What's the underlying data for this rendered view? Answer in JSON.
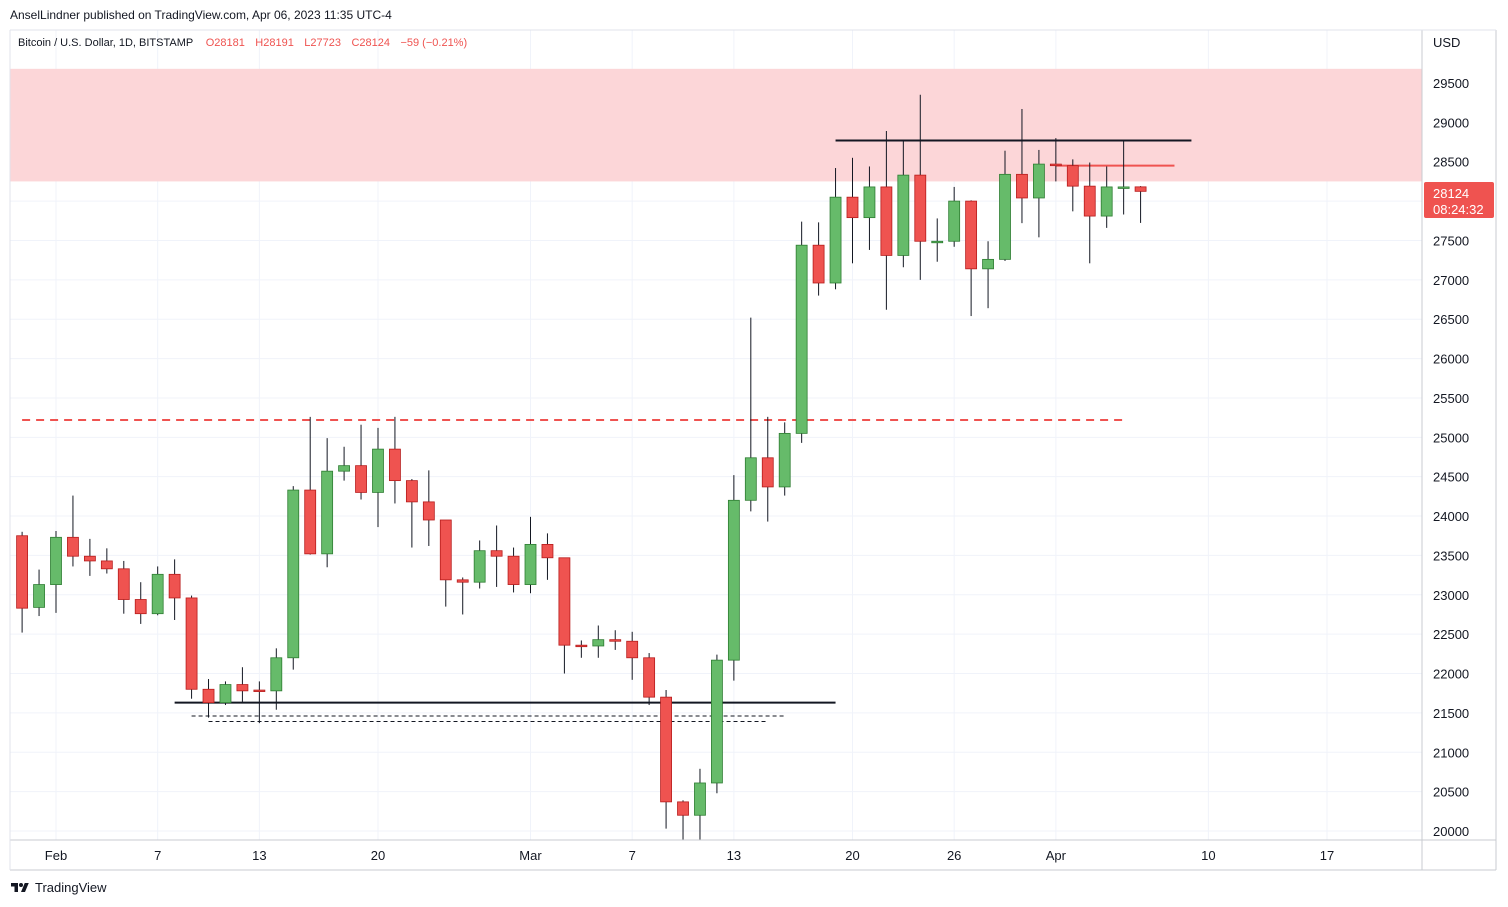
{
  "header": {
    "publisher": "AnselLindner published on TradingView.com, Apr 06, 2023 11:35 UTC-4",
    "symbol": "Bitcoin / U.S. Dollar, 1D, BITSTAMP",
    "open": "O28181",
    "high": "H28191",
    "low": "L27723",
    "close": "C28124",
    "change": "−59 (−0.21%)"
  },
  "price_axis": {
    "currency": "USD",
    "last_price": "28124",
    "countdown": "08:24:32"
  },
  "footer": {
    "brand": "TradingView"
  },
  "colors": {
    "up": "#66bb6a",
    "down": "#ef5350",
    "up_border": "#2e7d32",
    "down_border": "#b71c1c",
    "resistance_zone": "#fcd6d8",
    "accent": "#ef5350"
  },
  "chart_data": {
    "type": "candlestick",
    "symbol": "BTCUSD",
    "interval": "1D",
    "ylim": [
      19880,
      29960
    ],
    "y_ticks": [
      20000,
      20500,
      21000,
      21500,
      22000,
      22500,
      23000,
      23500,
      24000,
      24500,
      25000,
      25500,
      26000,
      26500,
      27000,
      27500,
      28000,
      28500,
      29000,
      29500
    ],
    "x_ticks": [
      {
        "date": "2023-02-01",
        "label": "Feb"
      },
      {
        "date": "2023-02-07",
        "label": "7"
      },
      {
        "date": "2023-02-13",
        "label": "13"
      },
      {
        "date": "2023-02-20",
        "label": "20"
      },
      {
        "date": "2023-03-01",
        "label": "Mar"
      },
      {
        "date": "2023-03-07",
        "label": "7"
      },
      {
        "date": "2023-03-13",
        "label": "13"
      },
      {
        "date": "2023-03-20",
        "label": "20"
      },
      {
        "date": "2023-03-26",
        "label": "26"
      },
      {
        "date": "2023-04-01",
        "label": "Apr"
      },
      {
        "date": "2023-04-10",
        "label": "10"
      },
      {
        "date": "2023-04-17",
        "label": "17"
      }
    ],
    "candles": [
      {
        "date": "2023-01-30",
        "o": 23750,
        "h": 23800,
        "l": 22520,
        "c": 22830
      },
      {
        "date": "2023-01-31",
        "o": 22840,
        "h": 23320,
        "l": 22730,
        "c": 23130
      },
      {
        "date": "2023-02-01",
        "o": 23130,
        "h": 23810,
        "l": 22770,
        "c": 23730
      },
      {
        "date": "2023-02-02",
        "o": 23730,
        "h": 24260,
        "l": 23360,
        "c": 23490
      },
      {
        "date": "2023-02-03",
        "o": 23490,
        "h": 23710,
        "l": 23240,
        "c": 23430
      },
      {
        "date": "2023-02-04",
        "o": 23430,
        "h": 23590,
        "l": 23270,
        "c": 23330
      },
      {
        "date": "2023-02-05",
        "o": 23330,
        "h": 23430,
        "l": 22760,
        "c": 22940
      },
      {
        "date": "2023-02-06",
        "o": 22940,
        "h": 23160,
        "l": 22630,
        "c": 22760
      },
      {
        "date": "2023-02-07",
        "o": 22760,
        "h": 23360,
        "l": 22740,
        "c": 23260
      },
      {
        "date": "2023-02-08",
        "o": 23260,
        "h": 23450,
        "l": 22680,
        "c": 22960
      },
      {
        "date": "2023-02-09",
        "o": 22960,
        "h": 22990,
        "l": 21680,
        "c": 21800
      },
      {
        "date": "2023-02-10",
        "o": 21800,
        "h": 21930,
        "l": 21440,
        "c": 21630
      },
      {
        "date": "2023-02-11",
        "o": 21630,
        "h": 21900,
        "l": 21600,
        "c": 21860
      },
      {
        "date": "2023-02-12",
        "o": 21860,
        "h": 22080,
        "l": 21640,
        "c": 21780
      },
      {
        "date": "2023-02-13",
        "o": 21790,
        "h": 21900,
        "l": 21370,
        "c": 21780
      },
      {
        "date": "2023-02-14",
        "o": 21780,
        "h": 22320,
        "l": 21540,
        "c": 22200
      },
      {
        "date": "2023-02-15",
        "o": 22200,
        "h": 24380,
        "l": 22050,
        "c": 24330
      },
      {
        "date": "2023-02-16",
        "o": 24330,
        "h": 25260,
        "l": 23510,
        "c": 23520
      },
      {
        "date": "2023-02-17",
        "o": 23520,
        "h": 24990,
        "l": 23350,
        "c": 24570
      },
      {
        "date": "2023-02-18",
        "o": 24570,
        "h": 24880,
        "l": 24450,
        "c": 24640
      },
      {
        "date": "2023-02-19",
        "o": 24640,
        "h": 25160,
        "l": 24210,
        "c": 24300
      },
      {
        "date": "2023-02-20",
        "o": 24300,
        "h": 25120,
        "l": 23860,
        "c": 24850
      },
      {
        "date": "2023-02-21",
        "o": 24850,
        "h": 25260,
        "l": 24160,
        "c": 24450
      },
      {
        "date": "2023-02-22",
        "o": 24450,
        "h": 24470,
        "l": 23600,
        "c": 24180
      },
      {
        "date": "2023-02-23",
        "o": 24180,
        "h": 24580,
        "l": 23620,
        "c": 23950
      },
      {
        "date": "2023-02-24",
        "o": 23950,
        "h": 23950,
        "l": 22850,
        "c": 23190
      },
      {
        "date": "2023-02-25",
        "o": 23190,
        "h": 23220,
        "l": 22750,
        "c": 23160
      },
      {
        "date": "2023-02-26",
        "o": 23160,
        "h": 23690,
        "l": 23080,
        "c": 23560
      },
      {
        "date": "2023-02-27",
        "o": 23560,
        "h": 23880,
        "l": 23100,
        "c": 23490
      },
      {
        "date": "2023-02-28",
        "o": 23490,
        "h": 23600,
        "l": 23030,
        "c": 23130
      },
      {
        "date": "2023-03-01",
        "o": 23130,
        "h": 23990,
        "l": 23020,
        "c": 23640
      },
      {
        "date": "2023-03-02",
        "o": 23640,
        "h": 23780,
        "l": 23190,
        "c": 23470
      },
      {
        "date": "2023-03-03",
        "o": 23470,
        "h": 23470,
        "l": 22000,
        "c": 22360
      },
      {
        "date": "2023-03-04",
        "o": 22360,
        "h": 22420,
        "l": 22200,
        "c": 22350
      },
      {
        "date": "2023-03-05",
        "o": 22350,
        "h": 22610,
        "l": 22200,
        "c": 22430
      },
      {
        "date": "2023-03-06",
        "o": 22430,
        "h": 22550,
        "l": 22300,
        "c": 22410
      },
      {
        "date": "2023-03-07",
        "o": 22410,
        "h": 22530,
        "l": 21920,
        "c": 22200
      },
      {
        "date": "2023-03-08",
        "o": 22200,
        "h": 22260,
        "l": 21600,
        "c": 21700
      },
      {
        "date": "2023-03-09",
        "o": 21700,
        "h": 21790,
        "l": 20030,
        "c": 20370
      },
      {
        "date": "2023-03-10",
        "o": 20370,
        "h": 20390,
        "l": 19880,
        "c": 20200
      },
      {
        "date": "2023-03-11",
        "o": 20200,
        "h": 20790,
        "l": 19890,
        "c": 20610
      },
      {
        "date": "2023-03-12",
        "o": 20610,
        "h": 22240,
        "l": 20480,
        "c": 22170
      },
      {
        "date": "2023-03-13",
        "o": 22170,
        "h": 24520,
        "l": 21910,
        "c": 24200
      },
      {
        "date": "2023-03-14",
        "o": 24200,
        "h": 26520,
        "l": 24060,
        "c": 24740
      },
      {
        "date": "2023-03-15",
        "o": 24740,
        "h": 25260,
        "l": 23930,
        "c": 24370
      },
      {
        "date": "2023-03-16",
        "o": 24370,
        "h": 25190,
        "l": 24260,
        "c": 25050
      },
      {
        "date": "2023-03-17",
        "o": 25050,
        "h": 27740,
        "l": 24930,
        "c": 27440
      },
      {
        "date": "2023-03-18",
        "o": 27440,
        "h": 27730,
        "l": 26800,
        "c": 26960
      },
      {
        "date": "2023-03-19",
        "o": 26960,
        "h": 28420,
        "l": 26880,
        "c": 28050
      },
      {
        "date": "2023-03-20",
        "o": 28050,
        "h": 28550,
        "l": 27210,
        "c": 27790
      },
      {
        "date": "2023-03-21",
        "o": 27790,
        "h": 28440,
        "l": 27380,
        "c": 28180
      },
      {
        "date": "2023-03-22",
        "o": 28180,
        "h": 28890,
        "l": 26620,
        "c": 27310
      },
      {
        "date": "2023-03-23",
        "o": 27310,
        "h": 28780,
        "l": 27160,
        "c": 28330
      },
      {
        "date": "2023-03-24",
        "o": 28330,
        "h": 29350,
        "l": 27000,
        "c": 27490
      },
      {
        "date": "2023-03-25",
        "o": 27490,
        "h": 27780,
        "l": 27230,
        "c": 27490
      },
      {
        "date": "2023-03-26",
        "o": 27490,
        "h": 28180,
        "l": 27420,
        "c": 28000
      },
      {
        "date": "2023-03-27",
        "o": 28000,
        "h": 28010,
        "l": 26540,
        "c": 27140
      },
      {
        "date": "2023-03-28",
        "o": 27140,
        "h": 27490,
        "l": 26640,
        "c": 27260
      },
      {
        "date": "2023-03-29",
        "o": 27260,
        "h": 28640,
        "l": 27240,
        "c": 28340
      },
      {
        "date": "2023-03-30",
        "o": 28340,
        "h": 29170,
        "l": 27720,
        "c": 28040
      },
      {
        "date": "2023-03-31",
        "o": 28040,
        "h": 28650,
        "l": 27540,
        "c": 28470
      },
      {
        "date": "2023-04-01",
        "o": 28470,
        "h": 28800,
        "l": 28250,
        "c": 28450
      },
      {
        "date": "2023-04-02",
        "o": 28450,
        "h": 28530,
        "l": 27870,
        "c": 28190
      },
      {
        "date": "2023-04-03",
        "o": 28190,
        "h": 28490,
        "l": 27210,
        "c": 27810
      },
      {
        "date": "2023-04-04",
        "o": 27810,
        "h": 28440,
        "l": 27660,
        "c": 28180
      },
      {
        "date": "2023-04-05",
        "o": 28180,
        "h": 28760,
        "l": 27830,
        "c": 28180
      },
      {
        "date": "2023-04-06",
        "o": 28181,
        "h": 28191,
        "l": 27723,
        "c": 28124
      }
    ],
    "overlays": [
      {
        "kind": "zone",
        "from_price": 28250,
        "to_price": 29680,
        "color": "#fcd6d8"
      },
      {
        "kind": "hline",
        "price": 28770,
        "from_date": "2023-03-19",
        "to_date": "2023-04-09",
        "color": "#131722",
        "style": "solid"
      },
      {
        "kind": "hline",
        "price": 28450,
        "from_date": "2023-04-01",
        "to_date": "2023-04-08",
        "color": "#ef5350",
        "style": "solid"
      },
      {
        "kind": "hline",
        "price": 25220,
        "from_date": "2023-01-30",
        "to_date": "2023-04-05",
        "color": "#ef5350",
        "style": "dashed"
      },
      {
        "kind": "hline",
        "price": 21630,
        "from_date": "2023-02-08",
        "to_date": "2023-03-19",
        "color": "#131722",
        "style": "solid"
      },
      {
        "kind": "hline",
        "price": 21460,
        "from_date": "2023-02-09",
        "to_date": "2023-03-16",
        "color": "#131722",
        "style": "dotted"
      },
      {
        "kind": "hline",
        "price": 21390,
        "from_date": "2023-02-10",
        "to_date": "2023-03-15",
        "color": "#131722",
        "style": "dotted"
      }
    ]
  }
}
